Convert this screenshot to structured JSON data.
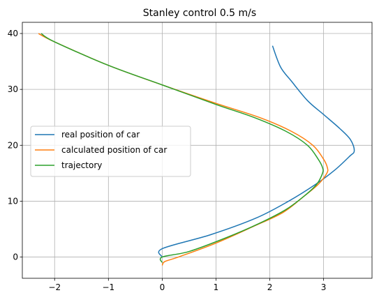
{
  "chart_data": {
    "type": "line",
    "title": "Stanley control 0.5 m/s",
    "xlabel": "",
    "ylabel": "",
    "xlim": [
      -2.6,
      3.9
    ],
    "ylim": [
      -3.8,
      42.0
    ],
    "xticks": [
      -2,
      -1,
      0,
      1,
      2,
      3
    ],
    "xtick_labels": [
      "−2",
      "−1",
      "0",
      "1",
      "2",
      "3"
    ],
    "yticks": [
      0,
      10,
      20,
      30,
      40
    ],
    "ytick_labels": [
      "0",
      "10",
      "20",
      "30",
      "40"
    ],
    "grid": true,
    "legend_position": "center-left",
    "series": [
      {
        "name": "real position of car",
        "color": "#1f77b4",
        "points": [
          [
            0,
            0
          ],
          [
            0,
            1.5
          ],
          [
            0.9,
            4
          ],
          [
            1.75,
            7
          ],
          [
            2.35,
            10
          ],
          [
            2.85,
            13
          ],
          [
            3.2,
            15.5
          ],
          [
            3.48,
            18
          ],
          [
            3.57,
            19
          ],
          [
            3.5,
            21
          ],
          [
            3.3,
            23
          ],
          [
            3,
            25.5
          ],
          [
            2.7,
            28
          ],
          [
            2.4,
            31.5
          ],
          [
            2.2,
            34
          ],
          [
            2.05,
            37.8
          ]
        ]
      },
      {
        "name": "calculated position of car",
        "color": "#ff7f0e",
        "points": [
          [
            0,
            -1.5
          ],
          [
            0.05,
            -0.8
          ],
          [
            0.3,
            0
          ],
          [
            1,
            2.5
          ],
          [
            1.7,
            5.5
          ],
          [
            2.25,
            8
          ],
          [
            2.65,
            11
          ],
          [
            2.9,
            13
          ],
          [
            3.06,
            15
          ],
          [
            3.07,
            16
          ],
          [
            3,
            17.5
          ],
          [
            2.8,
            20
          ],
          [
            2.4,
            22.5
          ],
          [
            1.8,
            25
          ],
          [
            1,
            27.5
          ],
          [
            0,
            30.8
          ],
          [
            -1,
            34.3
          ],
          [
            -2,
            38.5
          ],
          [
            -2.3,
            40
          ]
        ]
      },
      {
        "name": "trajectory",
        "color": "#2ca02c",
        "points": [
          [
            0,
            -1
          ],
          [
            0,
            0
          ],
          [
            0.5,
            1
          ],
          [
            1.2,
            3.5
          ],
          [
            1.8,
            6
          ],
          [
            2.3,
            8.5
          ],
          [
            2.65,
            11
          ],
          [
            2.87,
            13
          ],
          [
            2.98,
            15
          ],
          [
            2.98,
            16
          ],
          [
            2.9,
            17.5
          ],
          [
            2.7,
            20
          ],
          [
            2.3,
            22.5
          ],
          [
            1.7,
            25
          ],
          [
            1,
            27.3
          ],
          [
            0,
            30.8
          ],
          [
            -1,
            34.3
          ],
          [
            -2,
            38.5
          ],
          [
            -2.25,
            40
          ]
        ]
      }
    ]
  }
}
